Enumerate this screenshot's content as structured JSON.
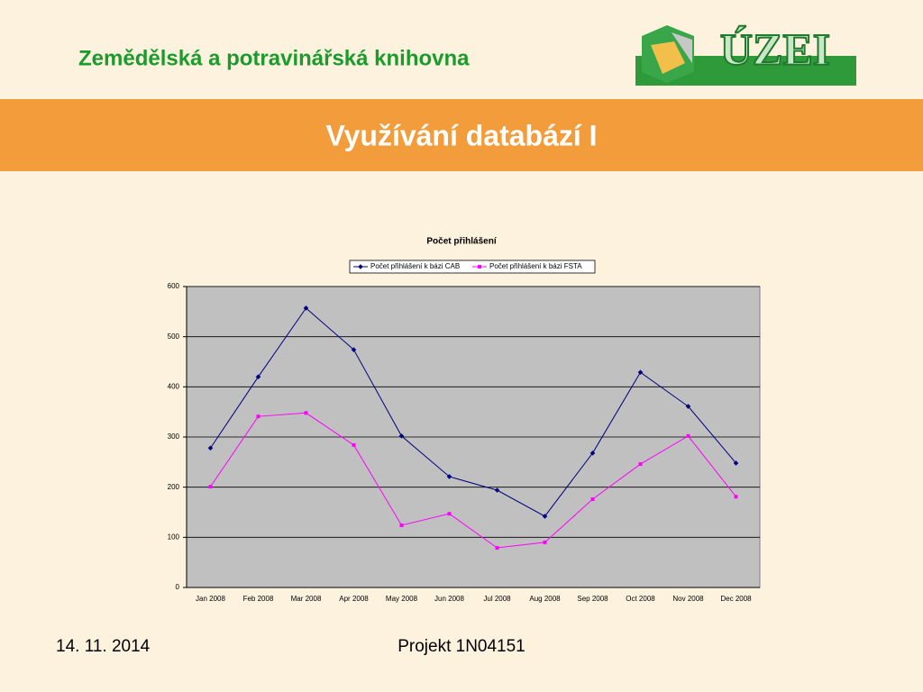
{
  "header": {
    "library": "Zemědělská a potravinářská knihovna",
    "logo": "ÚZEI"
  },
  "slide_title": "Využívání databází I",
  "footer": {
    "date": "14. 11. 2014",
    "project": "Projekt 1N04151"
  },
  "chart_data": {
    "type": "line",
    "title": "Počet přihlášení",
    "categories": [
      "Jan 2008",
      "Feb 2008",
      "Mar 2008",
      "Apr 2008",
      "May 2008",
      "Jun 2008",
      "Jul 2008",
      "Aug 2008",
      "Sep 2008",
      "Oct 2008",
      "Nov 2008",
      "Dec 2008"
    ],
    "series": [
      {
        "name": "Počet přihlášení k bázi CAB",
        "color": "#000080",
        "marker": "diamond",
        "values": [
          278,
          420,
          557,
          474,
          302,
          221,
          194,
          142,
          268,
          429,
          361,
          248
        ]
      },
      {
        "name": "Počet přihlášení k bázi FSTA",
        "color": "#ff00ff",
        "marker": "square",
        "values": [
          201,
          341,
          348,
          284,
          124,
          147,
          79,
          90,
          176,
          246,
          302,
          181
        ]
      }
    ],
    "ylim": [
      0,
      600
    ],
    "yticks": [
      0,
      100,
      200,
      300,
      400,
      500,
      600
    ],
    "grid": true,
    "legend": "top",
    "plot_background": "#c0c0c0"
  }
}
